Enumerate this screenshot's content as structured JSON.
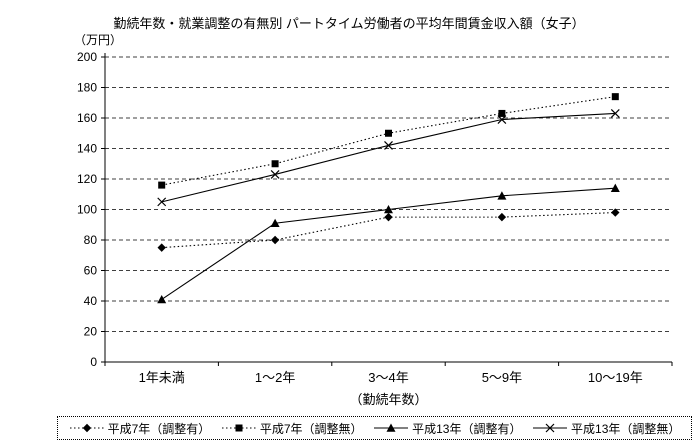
{
  "chart_data": {
    "type": "line",
    "title": "勤続年数・就業調整の有無別 パートタイム労働者の平均年間賃金収入額（女子）",
    "y_unit_label": "（万円）",
    "xlabel": "（勤続年数）",
    "categories": [
      "1年未満",
      "1～2年",
      "3～4年",
      "5～9年",
      "10～19年"
    ],
    "ylim": [
      0,
      200
    ],
    "ytick_step": 20,
    "grid": "dashed-horizontal",
    "legend_position": "bottom",
    "line_color": "#000000",
    "background_color": "#ffffff",
    "series": [
      {
        "name": "平成7年（調整有）",
        "marker": "diamond",
        "line": "dotted",
        "values": [
          75,
          80,
          95,
          95,
          98
        ]
      },
      {
        "name": "平成7年（調整無）",
        "marker": "square",
        "line": "dotted",
        "values": [
          116,
          130,
          150,
          163,
          174
        ]
      },
      {
        "name": "平成13年（調整有）",
        "marker": "triangle",
        "line": "solid",
        "values": [
          41,
          91,
          100,
          109,
          114
        ]
      },
      {
        "name": "平成13年（調整無）",
        "marker": "x",
        "line": "solid",
        "values": [
          105,
          123,
          142,
          159,
          163
        ]
      }
    ]
  }
}
